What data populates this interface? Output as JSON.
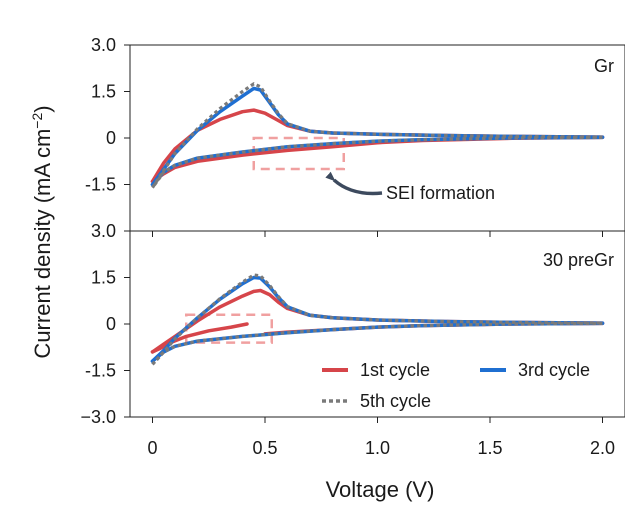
{
  "chart_data": {
    "type": "line",
    "xlabel": "Voltage (V)",
    "ylabel_main": "Current density (mA cm",
    "ylabel_sup": "−2",
    "ylabel_close": ")",
    "xlim": [
      -0.1,
      2.1
    ],
    "ylim": [
      -3.0,
      3.0
    ],
    "x_ticks": [
      0,
      0.5,
      1.0,
      1.5,
      2.0
    ],
    "x_tick_labels": [
      "0",
      "0.5",
      "1.0",
      "1.5",
      "2.0"
    ],
    "y_ticks": [
      3.0,
      1.5,
      0,
      -1.5,
      -3.0
    ],
    "top_y_tick_labels": [
      "3.0",
      "1.5",
      "0",
      "-1.5",
      ""
    ],
    "bottom_y_tick_labels": [
      "3.0",
      "1.5",
      "0",
      "-1.5",
      "−3.0"
    ],
    "colors": {
      "c1": "#d6454a",
      "c3": "#1f6fd1",
      "c5": "#7a7a7a",
      "box": "#f0a0a0",
      "arrow": "#3d4a5e"
    },
    "legend": [
      {
        "id": "c1",
        "label": "1st cycle"
      },
      {
        "id": "c3",
        "label": "3rd cycle"
      },
      {
        "id": "c5",
        "label": "5th cycle"
      }
    ],
    "panels": [
      {
        "label": "Gr",
        "annotation": "SEI formation",
        "box_x": [
          0.45,
          0.85
        ],
        "box_y": [
          0.0,
          -1.0
        ],
        "series": {
          "c1": {
            "branches": [
              [
                [
                  0.0,
                  -1.4
                ],
                [
                  0.05,
                  -0.8
                ],
                [
                  0.1,
                  -0.35
                ],
                [
                  0.2,
                  0.25
                ],
                [
                  0.3,
                  0.6
                ],
                [
                  0.4,
                  0.85
                ],
                [
                  0.45,
                  0.9
                ],
                [
                  0.5,
                  0.8
                ],
                [
                  0.55,
                  0.6
                ],
                [
                  0.6,
                  0.4
                ],
                [
                  0.7,
                  0.22
                ],
                [
                  0.8,
                  0.16
                ],
                [
                  1.0,
                  0.12
                ],
                [
                  1.3,
                  0.08
                ],
                [
                  1.6,
                  0.05
                ],
                [
                  2.0,
                  0.03
                ]
              ],
              [
                [
                  2.0,
                  0.02
                ],
                [
                  1.6,
                  -0.01
                ],
                [
                  1.2,
                  -0.08
                ],
                [
                  1.0,
                  -0.15
                ],
                [
                  0.8,
                  -0.28
                ],
                [
                  0.6,
                  -0.4
                ],
                [
                  0.4,
                  -0.55
                ],
                [
                  0.2,
                  -0.75
                ],
                [
                  0.1,
                  -0.95
                ],
                [
                  0.05,
                  -1.15
                ],
                [
                  0.0,
                  -1.4
                ]
              ]
            ]
          },
          "c3": {
            "branches": [
              [
                [
                  0.0,
                  -1.5
                ],
                [
                  0.05,
                  -1.0
                ],
                [
                  0.1,
                  -0.5
                ],
                [
                  0.2,
                  0.25
                ],
                [
                  0.3,
                  0.85
                ],
                [
                  0.4,
                  1.35
                ],
                [
                  0.45,
                  1.6
                ],
                [
                  0.48,
                  1.55
                ],
                [
                  0.52,
                  1.15
                ],
                [
                  0.56,
                  0.75
                ],
                [
                  0.6,
                  0.45
                ],
                [
                  0.7,
                  0.22
                ],
                [
                  0.8,
                  0.16
                ],
                [
                  1.0,
                  0.12
                ],
                [
                  1.3,
                  0.08
                ],
                [
                  1.6,
                  0.05
                ],
                [
                  2.0,
                  0.03
                ]
              ],
              [
                [
                  2.0,
                  0.02
                ],
                [
                  1.6,
                  0.0
                ],
                [
                  1.2,
                  -0.05
                ],
                [
                  1.0,
                  -0.1
                ],
                [
                  0.8,
                  -0.18
                ],
                [
                  0.6,
                  -0.28
                ],
                [
                  0.4,
                  -0.45
                ],
                [
                  0.2,
                  -0.65
                ],
                [
                  0.1,
                  -0.88
                ],
                [
                  0.05,
                  -1.1
                ],
                [
                  0.0,
                  -1.5
                ]
              ]
            ]
          },
          "c5": {
            "branches": [
              [
                [
                  0.0,
                  -1.6
                ],
                [
                  0.05,
                  -1.05
                ],
                [
                  0.1,
                  -0.5
                ],
                [
                  0.2,
                  0.3
                ],
                [
                  0.3,
                  0.95
                ],
                [
                  0.4,
                  1.5
                ],
                [
                  0.45,
                  1.75
                ],
                [
                  0.48,
                  1.65
                ],
                [
                  0.52,
                  1.2
                ],
                [
                  0.56,
                  0.78
                ],
                [
                  0.6,
                  0.46
                ],
                [
                  0.7,
                  0.22
                ],
                [
                  0.8,
                  0.16
                ],
                [
                  1.0,
                  0.12
                ],
                [
                  1.3,
                  0.08
                ],
                [
                  1.6,
                  0.05
                ],
                [
                  2.0,
                  0.03
                ]
              ],
              [
                [
                  2.0,
                  0.02
                ],
                [
                  1.6,
                  0.0
                ],
                [
                  1.2,
                  -0.05
                ],
                [
                  1.0,
                  -0.1
                ],
                [
                  0.8,
                  -0.18
                ],
                [
                  0.6,
                  -0.28
                ],
                [
                  0.4,
                  -0.45
                ],
                [
                  0.2,
                  -0.65
                ],
                [
                  0.1,
                  -0.88
                ],
                [
                  0.05,
                  -1.1
                ],
                [
                  0.0,
                  -1.6
                ]
              ]
            ]
          }
        }
      },
      {
        "label": "30 preGr",
        "annotation": "",
        "box_x": [
          0.15,
          0.53
        ],
        "box_y": [
          0.3,
          -0.6
        ],
        "series": {
          "c1": {
            "branches": [
              [
                [
                  0.0,
                  -0.9
                ],
                [
                  0.05,
                  -0.65
                ],
                [
                  0.1,
                  -0.4
                ],
                [
                  0.2,
                  0.1
                ],
                [
                  0.3,
                  0.55
                ],
                [
                  0.4,
                  0.9
                ],
                [
                  0.45,
                  1.05
                ],
                [
                  0.48,
                  1.08
                ],
                [
                  0.52,
                  0.95
                ],
                [
                  0.56,
                  0.7
                ],
                [
                  0.6,
                  0.5
                ],
                [
                  0.7,
                  0.28
                ],
                [
                  0.8,
                  0.2
                ],
                [
                  1.0,
                  0.13
                ],
                [
                  1.3,
                  0.08
                ],
                [
                  1.6,
                  0.05
                ],
                [
                  2.0,
                  0.03
                ]
              ],
              [
                [
                  0.42,
                  0.0
                ],
                [
                  0.35,
                  -0.1
                ],
                [
                  0.25,
                  -0.22
                ],
                [
                  0.15,
                  -0.4
                ],
                [
                  0.08,
                  -0.6
                ],
                [
                  0.03,
                  -0.8
                ],
                [
                  0.0,
                  -0.9
                ]
              ],
              [
                [
                  2.0,
                  0.02
                ],
                [
                  1.6,
                  0.0
                ],
                [
                  1.2,
                  -0.05
                ],
                [
                  1.0,
                  -0.1
                ],
                [
                  0.8,
                  -0.18
                ],
                [
                  0.6,
                  -0.26
                ],
                [
                  0.5,
                  -0.32
                ]
              ]
            ]
          },
          "c3": {
            "branches": [
              [
                [
                  0.0,
                  -1.2
                ],
                [
                  0.05,
                  -0.85
                ],
                [
                  0.1,
                  -0.45
                ],
                [
                  0.2,
                  0.2
                ],
                [
                  0.3,
                  0.8
                ],
                [
                  0.4,
                  1.3
                ],
                [
                  0.45,
                  1.5
                ],
                [
                  0.48,
                  1.48
                ],
                [
                  0.52,
                  1.2
                ],
                [
                  0.56,
                  0.85
                ],
                [
                  0.6,
                  0.55
                ],
                [
                  0.7,
                  0.28
                ],
                [
                  0.8,
                  0.2
                ],
                [
                  1.0,
                  0.13
                ],
                [
                  1.3,
                  0.08
                ],
                [
                  1.6,
                  0.05
                ],
                [
                  2.0,
                  0.03
                ]
              ],
              [
                [
                  2.0,
                  0.02
                ],
                [
                  1.6,
                  0.0
                ],
                [
                  1.2,
                  -0.05
                ],
                [
                  1.0,
                  -0.1
                ],
                [
                  0.8,
                  -0.18
                ],
                [
                  0.6,
                  -0.28
                ],
                [
                  0.4,
                  -0.4
                ],
                [
                  0.2,
                  -0.55
                ],
                [
                  0.1,
                  -0.72
                ],
                [
                  0.05,
                  -0.9
                ],
                [
                  0.0,
                  -1.2
                ]
              ]
            ]
          },
          "c5": {
            "branches": [
              [
                [
                  0.0,
                  -1.3
                ],
                [
                  0.05,
                  -0.9
                ],
                [
                  0.1,
                  -0.48
                ],
                [
                  0.2,
                  0.2
                ],
                [
                  0.3,
                  0.82
                ],
                [
                  0.4,
                  1.35
                ],
                [
                  0.45,
                  1.58
                ],
                [
                  0.48,
                  1.55
                ],
                [
                  0.52,
                  1.25
                ],
                [
                  0.56,
                  0.88
                ],
                [
                  0.6,
                  0.56
                ],
                [
                  0.7,
                  0.28
                ],
                [
                  0.8,
                  0.2
                ],
                [
                  1.0,
                  0.13
                ],
                [
                  1.3,
                  0.08
                ],
                [
                  1.6,
                  0.05
                ],
                [
                  2.0,
                  0.03
                ]
              ],
              [
                [
                  2.0,
                  0.02
                ],
                [
                  1.6,
                  0.0
                ],
                [
                  1.2,
                  -0.05
                ],
                [
                  1.0,
                  -0.1
                ],
                [
                  0.8,
                  -0.18
                ],
                [
                  0.6,
                  -0.28
                ],
                [
                  0.4,
                  -0.4
                ],
                [
                  0.2,
                  -0.55
                ],
                [
                  0.1,
                  -0.72
                ],
                [
                  0.05,
                  -0.9
                ],
                [
                  0.0,
                  -1.3
                ]
              ]
            ]
          }
        }
      }
    ]
  }
}
